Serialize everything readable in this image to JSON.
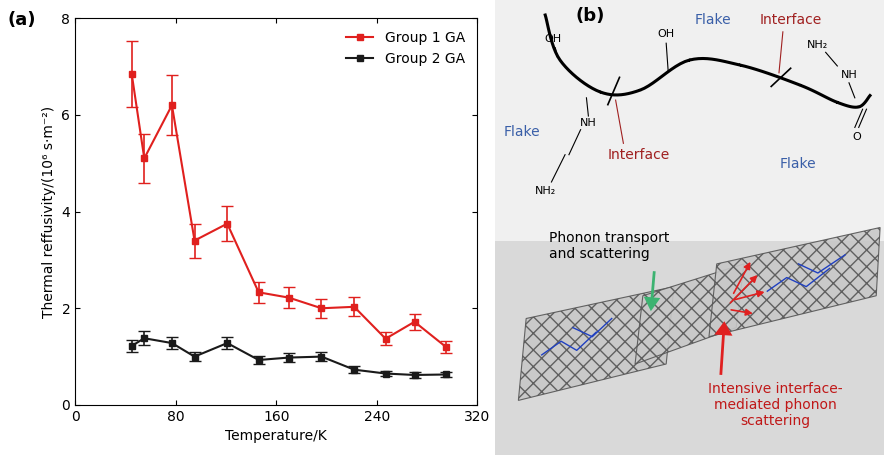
{
  "chart_data": {
    "type": "line",
    "panel_label": "(a)",
    "x_label": "Temperature/K",
    "y_label": "Thermal reffusivity/(10⁶ s·m⁻²)",
    "xlim": [
      0,
      320
    ],
    "xticks": [
      0,
      80,
      160,
      240,
      320
    ],
    "ylim": [
      0,
      8
    ],
    "yticks": [
      0,
      2,
      4,
      6,
      8
    ],
    "legend": "upper right",
    "x": [
      45,
      55,
      77,
      95,
      121,
      146,
      170,
      196,
      222,
      247,
      270,
      295
    ],
    "series": [
      {
        "name": "Group 1 GA",
        "color": "#e0201e",
        "marker": "square",
        "line_style": "solid",
        "values": [
          6.85,
          5.1,
          6.2,
          3.4,
          3.75,
          2.33,
          2.22,
          2.0,
          2.03,
          1.37,
          1.72,
          1.2
        ],
        "error": [
          0.68,
          0.5,
          0.62,
          0.35,
          0.36,
          0.22,
          0.22,
          0.2,
          0.2,
          0.13,
          0.17,
          0.12
        ]
      },
      {
        "name": "Group 2 GA",
        "color": "#1a1a1a",
        "marker": "square",
        "line_style": "solid",
        "values": [
          1.22,
          1.38,
          1.28,
          1.0,
          1.28,
          0.93,
          0.98,
          1.0,
          0.73,
          0.65,
          0.62,
          0.63
        ],
        "error": [
          0.12,
          0.14,
          0.13,
          0.1,
          0.13,
          0.09,
          0.1,
          0.1,
          0.07,
          0.06,
          0.06,
          0.06
        ]
      }
    ]
  },
  "diagram": {
    "panel_label": "(b)",
    "molecule": {
      "flake_labels": [
        "Flake",
        "Flake",
        "Flake"
      ],
      "interface_labels": [
        "Interface",
        "Interface"
      ],
      "groups": [
        "OH",
        "OH",
        "NH",
        "NH₂",
        "NH₂",
        "NH",
        "O"
      ]
    },
    "illustration": {
      "phonon_label": "Phonon transport\nand scattering",
      "interface_label": "Intensive interface-\nmediated phonon\nscattering"
    }
  }
}
